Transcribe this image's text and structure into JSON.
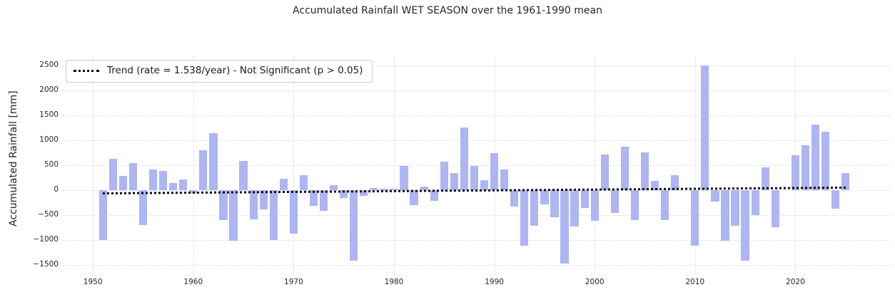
{
  "colors": {
    "bar": "#adb5f2",
    "trend": "#0a0a0a",
    "grid": "#d9d9e3",
    "text": "#262626",
    "background": "#ffffff"
  },
  "chart_data": {
    "type": "bar",
    "title": "Accumulated Rainfall WET SEASON over the 1961-1990 mean",
    "xlabel": "",
    "ylabel": "Accumulated Rainfall [mm]",
    "legend_label": "Trend (rate = 1.538/year) - Not Significant (p > 0.05)",
    "legend_position": "upper left",
    "grid": true,
    "xlim": [
      1947,
      2029.5
    ],
    "ylim": [
      -1700,
      2700
    ],
    "bar_width_years": 0.8,
    "xticks": [
      1950,
      1960,
      1970,
      1980,
      1990,
      2000,
      2010,
      2020
    ],
    "xtick_labels": [
      "1950",
      "1960",
      "1970",
      "1980",
      "1990",
      "2000",
      "2010",
      "2020"
    ],
    "yticks": [
      2500,
      2000,
      1500,
      1000,
      500,
      0,
      -500,
      -1000,
      -1500
    ],
    "ytick_labels": [
      "2500",
      "2000",
      "1500",
      "1000",
      "500",
      "0",
      "−500",
      "−1000",
      "−1500"
    ],
    "x": [
      1951,
      1952,
      1953,
      1954,
      1955,
      1956,
      1957,
      1958,
      1959,
      1960,
      1961,
      1962,
      1963,
      1964,
      1965,
      1966,
      1967,
      1968,
      1969,
      1970,
      1971,
      1972,
      1973,
      1974,
      1975,
      1976,
      1977,
      1978,
      1979,
      1980,
      1981,
      1982,
      1983,
      1984,
      1985,
      1986,
      1987,
      1988,
      1989,
      1990,
      1991,
      1992,
      1993,
      1994,
      1995,
      1996,
      1997,
      1998,
      1999,
      2000,
      2001,
      2002,
      2003,
      2004,
      2005,
      2006,
      2007,
      2008,
      2009,
      2010,
      2011,
      2012,
      2013,
      2014,
      2015,
      2016,
      2017,
      2018,
      2019,
      2020,
      2021,
      2022,
      2023,
      2024,
      2025
    ],
    "values": [
      -1000,
      630,
      280,
      550,
      -700,
      410,
      390,
      150,
      210,
      -60,
      800,
      1140,
      -600,
      -1010,
      580,
      -580,
      -380,
      -1000,
      230,
      -870,
      300,
      -320,
      -420,
      100,
      -150,
      -1410,
      -120,
      50,
      25,
      25,
      480,
      -300,
      70,
      -210,
      570,
      340,
      1260,
      490,
      200,
      740,
      420,
      -330,
      -1110,
      -710,
      -290,
      -540,
      -1470,
      -730,
      -360,
      -610,
      720,
      -450,
      870,
      -600,
      760,
      190,
      -600,
      300,
      null,
      -1110,
      2500,
      -230,
      -1020,
      -720,
      -1410,
      -500,
      460,
      -740,
      null,
      700,
      900,
      1310,
      1170,
      -370,
      340
    ],
    "missing_years": [
      2009,
      2019
    ],
    "trend": {
      "rate_per_year": 1.538,
      "p_value_note": "p > 0.05",
      "significant": false,
      "x0": 1951,
      "y0": -70,
      "x1": 2025,
      "y1": 45
    }
  }
}
